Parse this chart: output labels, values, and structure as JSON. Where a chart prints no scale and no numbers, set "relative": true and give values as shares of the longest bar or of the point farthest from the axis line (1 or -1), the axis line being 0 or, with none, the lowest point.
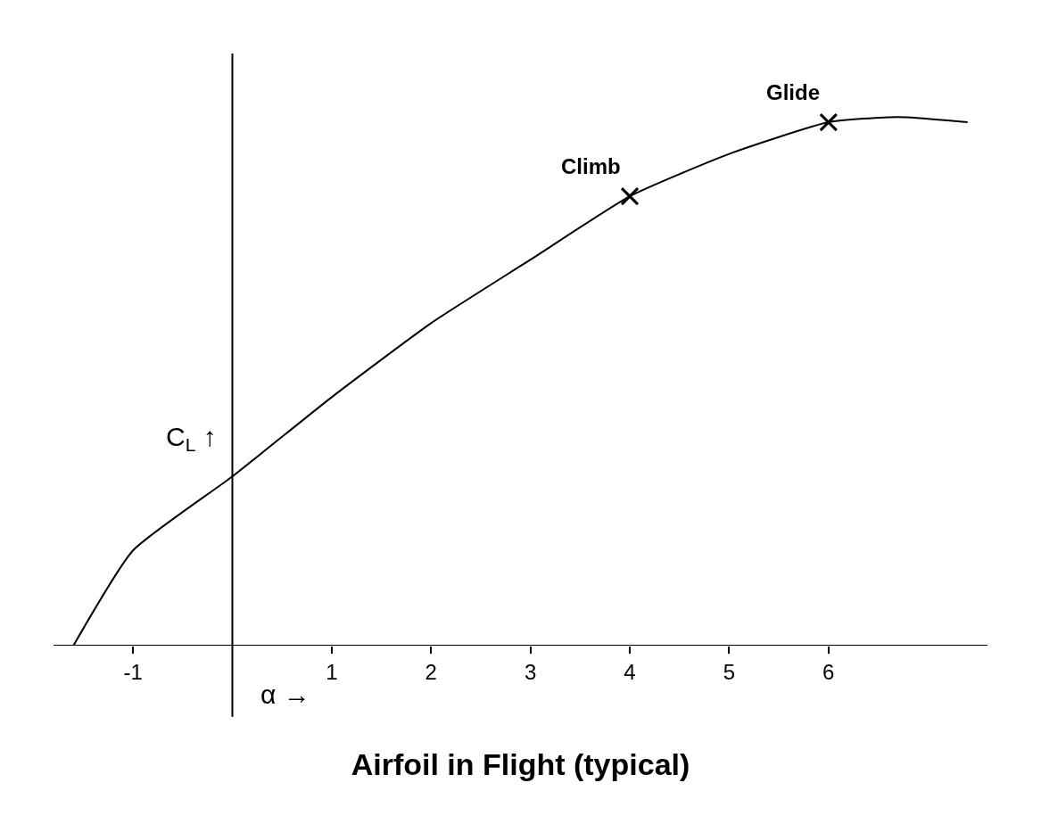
{
  "chart_data": {
    "type": "line",
    "title": "Airfoil in Flight (typical)",
    "xlabel": "α →",
    "ylabel": "C$_{L}$ ↑",
    "relative": true,
    "xlim": [
      -1.8,
      7.6
    ],
    "xticks": [
      -1,
      1,
      2,
      3,
      4,
      5,
      6
    ],
    "legend": false,
    "marker": "none",
    "line_style": "solid",
    "series": [
      {
        "color": "#000000",
        "x": [
          -1.6,
          -1,
          0,
          1,
          2,
          3,
          4,
          5,
          6,
          6.7,
          7.4
        ],
        "values": [
          0,
          0.18,
          0.32,
          0.47,
          0.61,
          0.73,
          0.85,
          0.93,
          0.99,
          1,
          0.99
        ]
      },
      {
        "type": "scatter",
        "marker": "cross",
        "color": "#000000",
        "x": [
          4,
          6
        ],
        "values": [
          0.85,
          0.99
        ]
      }
    ],
    "annotations": [
      {
        "text": "Climb",
        "x": 4,
        "y": 0.85
      },
      {
        "text": "Glide",
        "x": 6,
        "y": 0.99
      }
    ]
  }
}
